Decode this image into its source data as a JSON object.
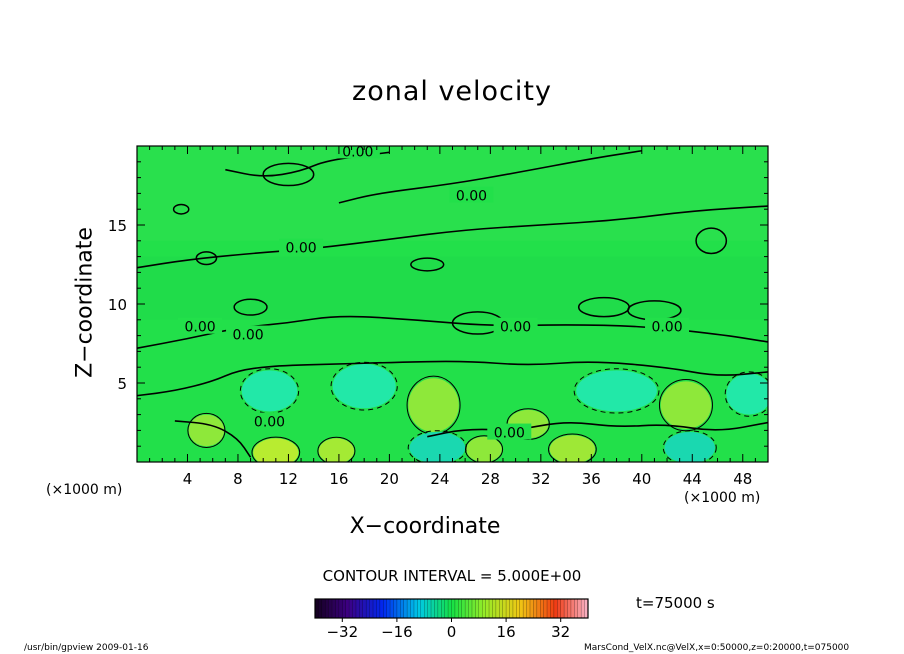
{
  "chart_data": {
    "type": "heatmap",
    "title": "zonal velocity",
    "xlabel": "X−coordinate",
    "ylabel": "Z−coordinate",
    "x_unit_label": "(×1000 m)",
    "xlim": [
      0,
      50
    ],
    "ylim": [
      0,
      20
    ],
    "x_ticks": [
      4,
      8,
      12,
      16,
      20,
      24,
      28,
      32,
      36,
      40,
      44,
      48
    ],
    "y_ticks": [
      5,
      10,
      15
    ],
    "contour_labels": [
      "0.00",
      "0.00",
      "0.00",
      "0.00",
      "0.00",
      "0.00",
      "0.00",
      "0.00",
      "0.00"
    ],
    "contour_interval_text": "CONTOUR INTERVAL = 5.000E+00",
    "time_text": "t=75000 s",
    "colorbar": {
      "range": [
        -40,
        40
      ],
      "ticks": [
        "−32",
        "−16",
        "0",
        "16",
        "32"
      ],
      "tick_values": [
        -32,
        -16,
        0,
        16,
        32
      ]
    },
    "colors": {
      "background_field": "#22e04a",
      "weak_positive": "#8ee83a",
      "weak_negative": "#22e8a8",
      "contour": "#000000"
    }
  },
  "footer": {
    "left": "/usr/bin/gpview   2009-01-16",
    "right": "MarsCond_VelX.nc@VelX,x=0:50000,z=0:20000,t=075000"
  }
}
